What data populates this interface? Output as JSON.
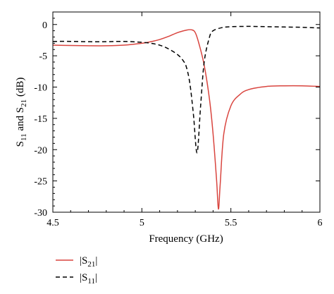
{
  "chart_data": {
    "type": "line",
    "xlabel": "Frequency (GHz)",
    "ylabel_parts": {
      "s": "S",
      "sub11": "11",
      "mid": " and ",
      "sub21": "21",
      "unit": " (dB)"
    },
    "xlim": [
      4.5,
      6.0
    ],
    "ylim": [
      -30,
      2
    ],
    "x_ticks": [
      4.5,
      5.0,
      5.5,
      6.0
    ],
    "x_tick_labels": [
      "4.5",
      "5",
      "5.5",
      "6"
    ],
    "y_ticks": [
      0,
      -5,
      -10,
      -15,
      -20,
      -25,
      -30
    ],
    "y_tick_labels": [
      "0",
      "-5",
      "-10",
      "-15",
      "-20",
      "-25",
      "-30"
    ],
    "grid": false,
    "legend_placement": "bottom-left, below plot",
    "series": [
      {
        "key": "s21",
        "legend": {
          "pre": "|S",
          "sub": "21",
          "post": "|"
        },
        "color": "#d9453f",
        "dash": "solid",
        "x": [
          4.5,
          4.6,
          4.7,
          4.8,
          4.9,
          5.0,
          5.05,
          5.1,
          5.15,
          5.2,
          5.25,
          5.28,
          5.3,
          5.32,
          5.35,
          5.38,
          5.4,
          5.42,
          5.43,
          5.44,
          5.46,
          5.5,
          5.55,
          5.6,
          5.7,
          5.8,
          5.9,
          6.0
        ],
        "values": [
          -3.3,
          -3.35,
          -3.4,
          -3.4,
          -3.3,
          -3.0,
          -2.75,
          -2.4,
          -1.9,
          -1.3,
          -0.9,
          -0.85,
          -1.3,
          -3.0,
          -6.5,
          -12.0,
          -17.5,
          -25.0,
          -29.5,
          -25.5,
          -17.5,
          -13.0,
          -11.2,
          -10.4,
          -9.9,
          -9.8,
          -9.8,
          -9.9
        ]
      },
      {
        "key": "s11",
        "legend": {
          "pre": "|S",
          "sub": "11",
          "post": "|"
        },
        "color": "#000000",
        "dash": "dashed",
        "x": [
          4.5,
          4.6,
          4.7,
          4.8,
          4.9,
          5.0,
          5.05,
          5.1,
          5.15,
          5.2,
          5.23,
          5.25,
          5.27,
          5.29,
          5.31,
          5.33,
          5.35,
          5.38,
          5.4,
          5.45,
          5.5,
          5.6,
          5.7,
          5.8,
          5.9,
          6.0
        ],
        "values": [
          -2.7,
          -2.7,
          -2.75,
          -2.75,
          -2.7,
          -2.85,
          -3.0,
          -3.3,
          -3.9,
          -4.8,
          -5.7,
          -6.8,
          -9.5,
          -14.5,
          -20.5,
          -13.0,
          -6.0,
          -2.0,
          -1.0,
          -0.5,
          -0.35,
          -0.3,
          -0.35,
          -0.4,
          -0.45,
          -0.55
        ]
      }
    ]
  }
}
